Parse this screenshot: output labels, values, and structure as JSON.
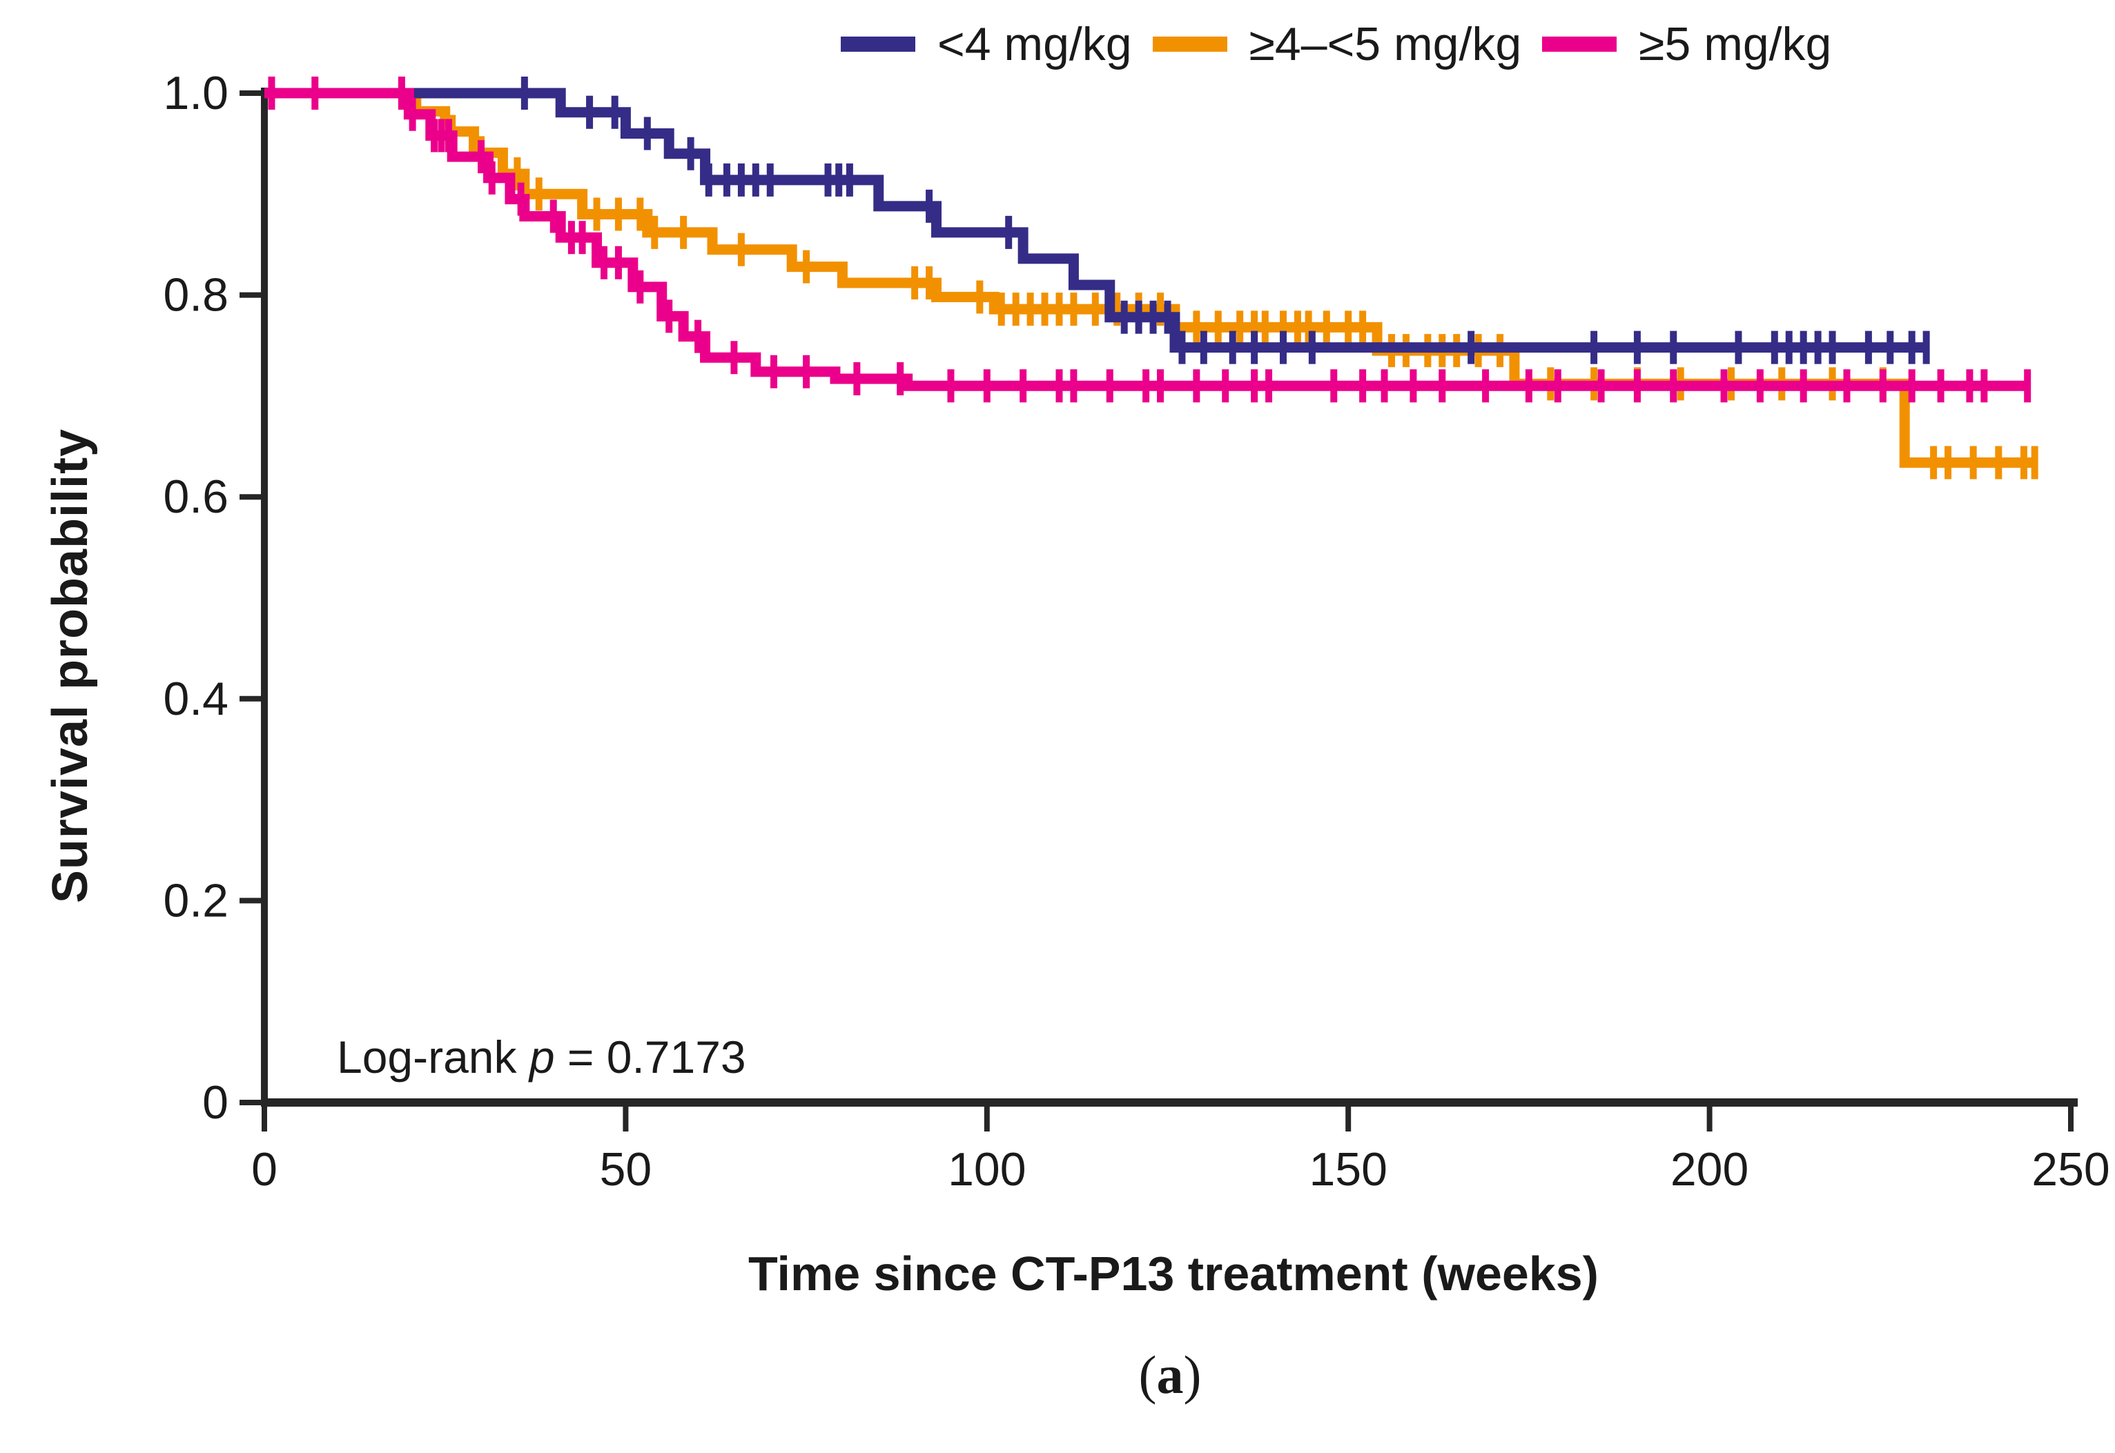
{
  "figure": {
    "caption_open": "(",
    "caption_letter": "a",
    "caption_close": ")",
    "annotation_prefix": "Log-rank ",
    "annotation_stat": "p",
    "annotation_suffix": " = 0.7173",
    "background": "#ffffff",
    "text_color": "#1a1a1a",
    "axis_color": "#262626"
  },
  "chart_data": {
    "type": "line",
    "subtype": "kaplan-meier-step",
    "title": "",
    "xlabel": "Time since CT-P13 treatment (weeks)",
    "ylabel": "Survival probability",
    "xlim": [
      0,
      250
    ],
    "ylim": [
      0,
      1.0
    ],
    "xticks": [
      0,
      50,
      100,
      150,
      200,
      250
    ],
    "yticks": [
      1.0,
      0.8,
      0.6,
      0.4,
      0.2,
      0
    ],
    "ytick_labels": [
      "1.0",
      "0.8",
      "0.6",
      "0.4",
      "0.2",
      "0"
    ],
    "grid": false,
    "legend_position": "top",
    "annotation": "Log-rank p = 0.7173",
    "series": [
      {
        "name": "<4 mg/kg",
        "color": "#352C87",
        "steps": [
          [
            0,
            1.0
          ],
          [
            41,
            0.981
          ],
          [
            50,
            0.96
          ],
          [
            56,
            0.94
          ],
          [
            61,
            0.914
          ],
          [
            85,
            0.888
          ],
          [
            93,
            0.862
          ],
          [
            105,
            0.836
          ],
          [
            112,
            0.81
          ],
          [
            117,
            0.778
          ],
          [
            126,
            0.748
          ]
        ],
        "end": 230,
        "censors": [
          36,
          45,
          48.5,
          53,
          59,
          61.5,
          64,
          66,
          68,
          70,
          78,
          79.5,
          81,
          92,
          103,
          119,
          121,
          123,
          125,
          127,
          130,
          134,
          137,
          141,
          145,
          167,
          184,
          190,
          195,
          204,
          209,
          211,
          213,
          215,
          217,
          222,
          225,
          228,
          230
        ]
      },
      {
        "name": "≥4–<5 mg/kg",
        "color": "#F29100",
        "steps": [
          [
            0,
            1.0
          ],
          [
            21,
            0.982
          ],
          [
            25,
            0.962
          ],
          [
            29,
            0.941
          ],
          [
            33,
            0.92
          ],
          [
            36,
            0.9
          ],
          [
            44,
            0.88
          ],
          [
            53,
            0.862
          ],
          [
            62,
            0.845
          ],
          [
            73,
            0.828
          ],
          [
            80,
            0.812
          ],
          [
            93,
            0.798
          ],
          [
            101,
            0.786
          ],
          [
            126,
            0.768
          ],
          [
            154,
            0.745
          ],
          [
            173,
            0.712
          ],
          [
            227,
            0.634
          ]
        ],
        "end": 245,
        "censors": [
          26,
          30,
          35,
          38,
          46,
          49,
          52,
          54,
          58,
          66,
          75,
          90,
          92,
          99,
          102,
          104,
          106,
          108,
          110,
          112,
          115,
          118,
          121,
          124,
          129,
          132,
          135,
          137,
          138.5,
          141,
          143,
          144.5,
          147,
          150,
          152,
          156,
          158,
          161,
          163,
          165,
          168,
          171,
          178,
          184,
          190,
          196,
          203,
          210,
          217,
          224,
          231,
          233,
          236.5,
          240,
          243.5,
          245
        ]
      },
      {
        "name": "≥5 mg/kg",
        "color": "#EB008B",
        "steps": [
          [
            0,
            1.0
          ],
          [
            20,
            0.979
          ],
          [
            23,
            0.958
          ],
          [
            26,
            0.937
          ],
          [
            31,
            0.916
          ],
          [
            34,
            0.895
          ],
          [
            36,
            0.878
          ],
          [
            41,
            0.857
          ],
          [
            46,
            0.832
          ],
          [
            51,
            0.808
          ],
          [
            55,
            0.779
          ],
          [
            58,
            0.759
          ],
          [
            61,
            0.738
          ],
          [
            68,
            0.724
          ],
          [
            79,
            0.717
          ],
          [
            89,
            0.71
          ]
        ],
        "end": 244,
        "censors": [
          1,
          7,
          19,
          20.5,
          23.5,
          24.5,
          25.5,
          30,
          31.5,
          35.5,
          40,
          42.5,
          44,
          47,
          49,
          52,
          56,
          60,
          65,
          70.5,
          75,
          82,
          88,
          95,
          100,
          105,
          110,
          112,
          117,
          122,
          124,
          129,
          133,
          137,
          139,
          148,
          152,
          155,
          159,
          163,
          169,
          175,
          179,
          185,
          190,
          195,
          202,
          207,
          213,
          219,
          224,
          228,
          232,
          236,
          238,
          244
        ]
      }
    ]
  }
}
